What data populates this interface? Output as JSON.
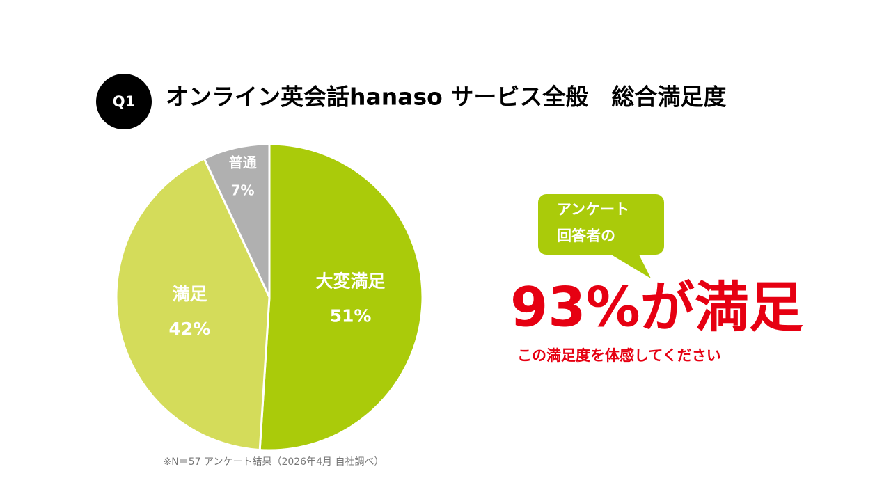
{
  "badge": "Q1",
  "chart_data": {
    "type": "pie",
    "title": "オンライン英会話hanaso サービス全般　総合満足度",
    "categories": [
      "大変満足",
      "満足",
      "普通"
    ],
    "values": [
      51,
      42,
      7
    ],
    "value_labels": [
      "51%",
      "42%",
      "7%"
    ],
    "colors": [
      "#aacb0a",
      "#d4dc5a",
      "#b0b0b0"
    ]
  },
  "callout": {
    "lines": [
      "アンケート",
      "回答者の"
    ]
  },
  "headline": "93%が満足",
  "subline": "この満足度を体感してください",
  "footnote": "※N＝57 アンケート結果（2026年4月 自社調べ）"
}
